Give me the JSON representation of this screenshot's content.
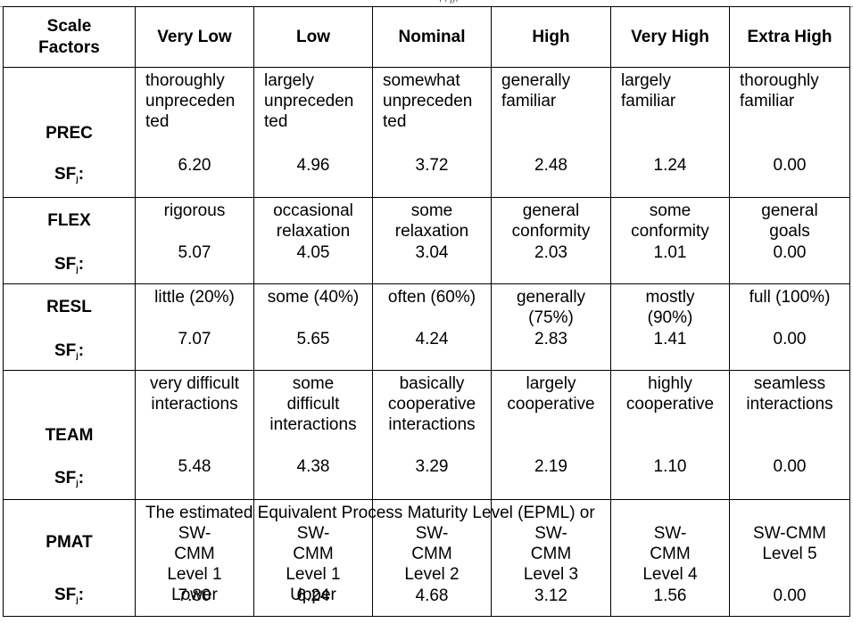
{
  "header": {
    "scale_factors": "Scale Factors",
    "levels": [
      "Very Low",
      "Low",
      "Nominal",
      "High",
      "Very High",
      "Extra High"
    ]
  },
  "sf_label": "SF",
  "sf_sub": "j",
  "rows": [
    {
      "name": "PREC",
      "descs": [
        "thoroughly unpreceden ted",
        "largely unpreceden ted",
        "somewhat unpreceden ted",
        "generally familiar",
        "largely familiar",
        "thoroughly familiar"
      ],
      "values": [
        "6.20",
        "4.96",
        "3.72",
        "2.48",
        "1.24",
        "0.00"
      ]
    },
    {
      "name": "FLEX",
      "descs": [
        "rigorous",
        "occasional relaxation",
        "some relaxation",
        "general conformity",
        "some conformity",
        "general goals"
      ],
      "values": [
        "5.07",
        "4.05",
        "3.04",
        "2.03",
        "1.01",
        "0.00"
      ]
    },
    {
      "name": "RESL",
      "descs": [
        "little (20%)",
        "some (40%)",
        "often (60%)",
        "generally (75%)",
        "mostly (90%)",
        "full (100%)"
      ],
      "values": [
        "7.07",
        "5.65",
        "4.24",
        "2.83",
        "1.41",
        "0.00"
      ]
    },
    {
      "name": "TEAM",
      "descs": [
        "very difficult interactions",
        "some difficult interactions",
        "basically cooperative interactions",
        "largely cooperative",
        "highly cooperative",
        "seamless interactions"
      ],
      "values": [
        "5.48",
        "4.38",
        "3.29",
        "2.19",
        "1.10",
        "0.00"
      ]
    },
    {
      "name": "PMAT",
      "span_text": "The estimated Equivalent Process Maturity Level (EPML) or",
      "descs": [
        "SW-CMM Level 1 Lower",
        "SW-CMM Level 1 Upper",
        "SW-CMM Level 2",
        "SW-CMM Level 3",
        "SW-CMM Level 4",
        "SW-CMM Level 5"
      ],
      "values": [
        "7.80",
        "6.24",
        "4.68",
        "3.12",
        "1.56",
        "0.00"
      ]
    }
  ]
}
